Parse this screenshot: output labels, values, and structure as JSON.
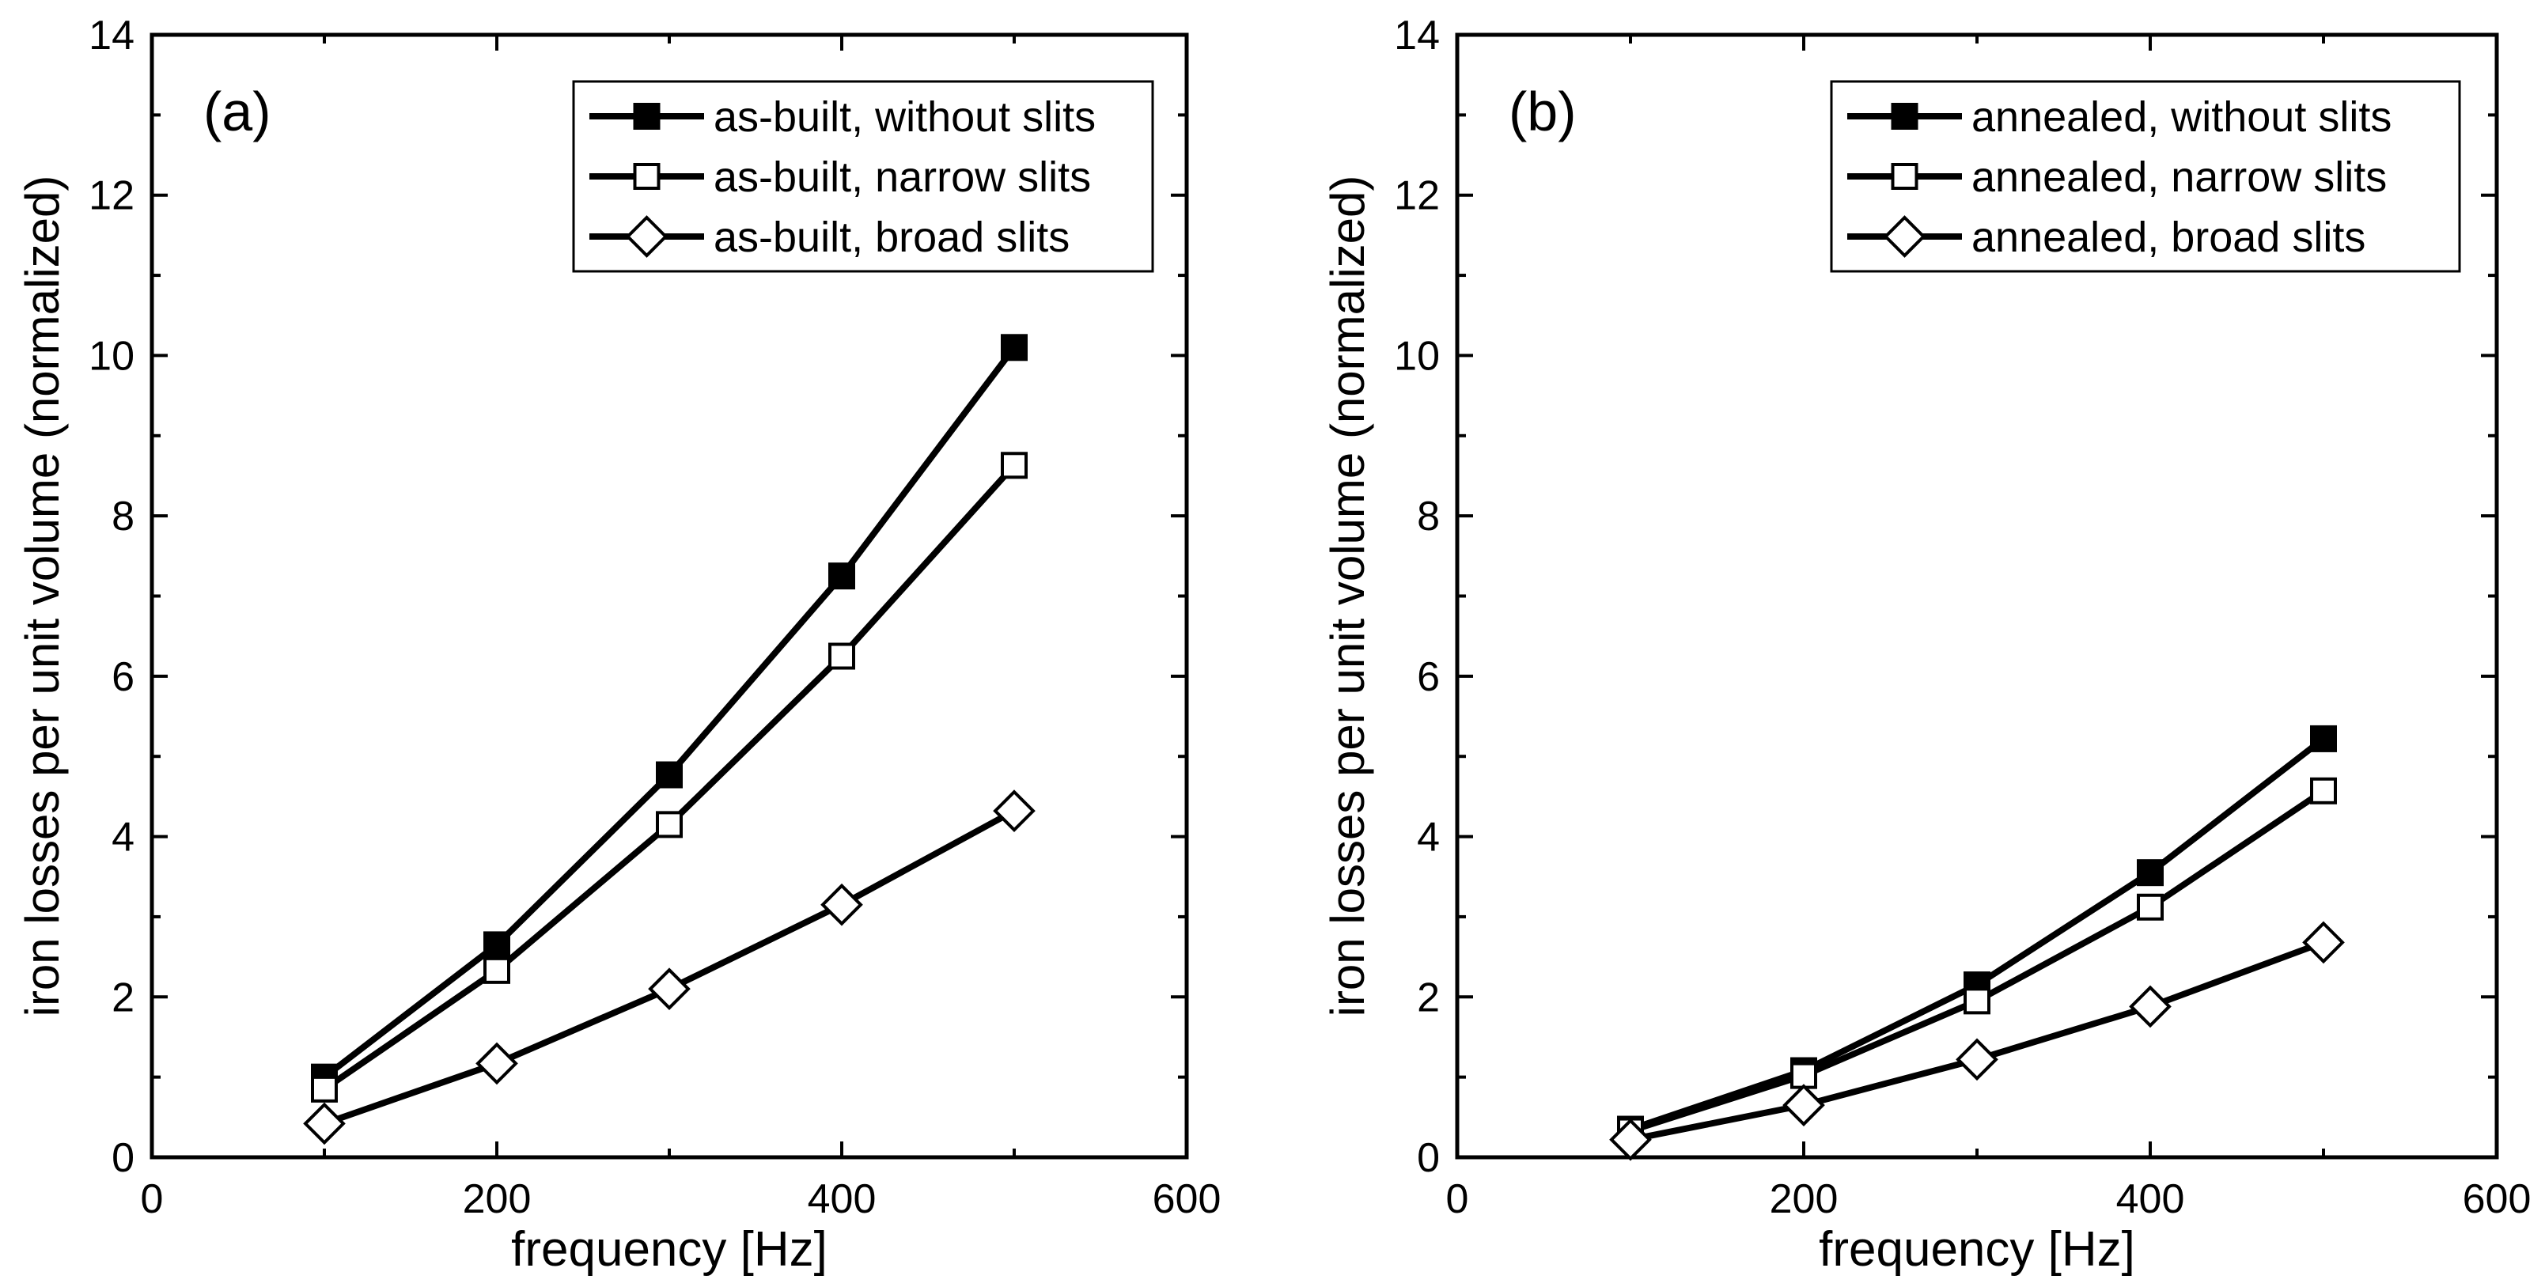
{
  "chart_data": [
    {
      "type": "line",
      "panel_label": "(a)",
      "xlabel": "frequency [Hz]",
      "ylabel": "iron losses per unit volume (normalized)",
      "xlim": [
        0,
        600
      ],
      "ylim": [
        0,
        14
      ],
      "xticks": [
        0,
        200,
        400,
        600
      ],
      "yticks": [
        0,
        2,
        4,
        6,
        8,
        10,
        12,
        14
      ],
      "legend_position": "top-right",
      "x": [
        100,
        200,
        300,
        400,
        500
      ],
      "series": [
        {
          "name": "as-built, without slits",
          "marker": "square-filled",
          "values": [
            1.0,
            2.65,
            4.77,
            7.25,
            10.1
          ]
        },
        {
          "name": "as-built, narrow slits",
          "marker": "square-open",
          "values": [
            0.85,
            2.33,
            4.15,
            6.25,
            8.63
          ]
        },
        {
          "name": "as-built, broad slits",
          "marker": "diamond-open",
          "values": [
            0.42,
            1.17,
            2.1,
            3.15,
            4.32
          ]
        }
      ]
    },
    {
      "type": "line",
      "panel_label": "(b)",
      "xlabel": "frequency [Hz]",
      "ylabel": "iron losses per unit volume (normalized)",
      "xlim": [
        0,
        600
      ],
      "ylim": [
        0,
        14
      ],
      "xticks": [
        0,
        200,
        400,
        600
      ],
      "yticks": [
        0,
        2,
        4,
        6,
        8,
        10,
        12,
        14
      ],
      "legend_position": "top-right",
      "x": [
        100,
        200,
        300,
        400,
        500
      ],
      "series": [
        {
          "name": "annealed, without slits",
          "marker": "square-filled",
          "values": [
            0.35,
            1.08,
            2.15,
            3.55,
            5.22
          ]
        },
        {
          "name": "annealed, narrow slits",
          "marker": "square-open",
          "values": [
            0.33,
            1.02,
            1.95,
            3.12,
            4.57
          ]
        },
        {
          "name": "annealed, broad slits",
          "marker": "diamond-open",
          "values": [
            0.22,
            0.65,
            1.22,
            1.88,
            2.68
          ]
        }
      ]
    }
  ]
}
